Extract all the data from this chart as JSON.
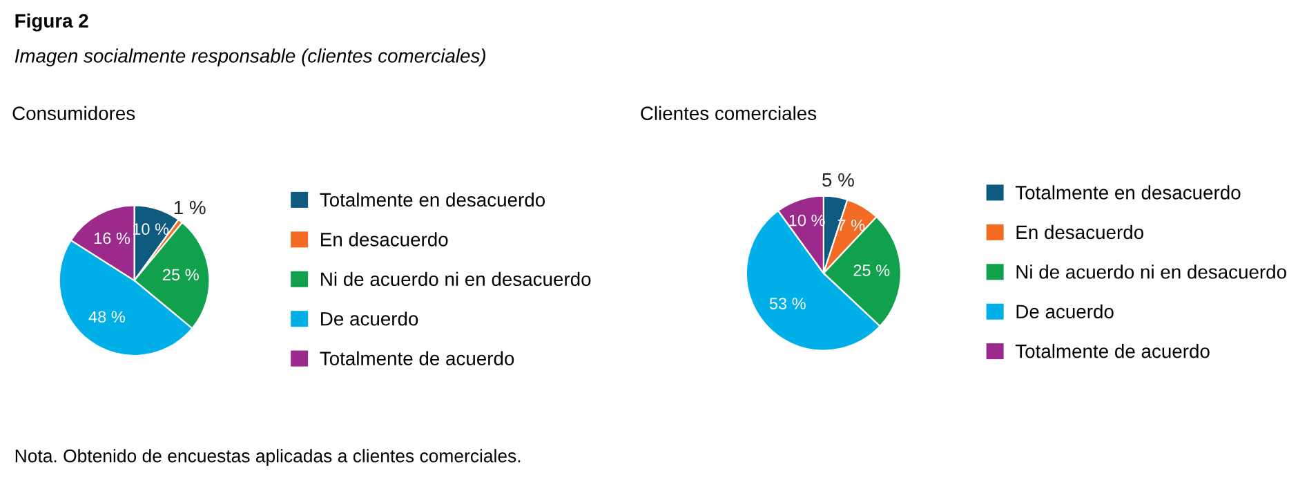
{
  "chart_data": [
    {
      "type": "pie",
      "title": "Consumidores",
      "categories": [
        "Totalmente en desacuerdo",
        "En desacuerdo",
        "Ni de acuerdo ni en desacuerdo",
        "De acuerdo",
        "Totalmente de acuerdo"
      ],
      "values": [
        10,
        1,
        25,
        48,
        16
      ],
      "value_labels": [
        "10 %",
        "1 %",
        "25 %",
        "48 %",
        "16 %"
      ],
      "colors": [
        "#0f5a7f",
        "#f26b22",
        "#11a04b",
        "#00aee8",
        "#9b2a8c"
      ],
      "legend": "right",
      "annotations": [
        "Figura 2",
        "Imagen socialmente responsable (clientes comerciales)",
        "Nota. Obtenido de encuestas aplicadas a clientes comerciales."
      ]
    },
    {
      "type": "pie",
      "title": "Clientes comerciales",
      "categories": [
        "Totalmente en desacuerdo",
        "En desacuerdo",
        "Ni de acuerdo ni en desacuerdo",
        "De acuerdo",
        "Totalmente de acuerdo"
      ],
      "values": [
        5,
        7,
        25,
        53,
        10
      ],
      "value_labels": [
        "5 %",
        "7 %",
        "25 %",
        "53 %",
        "10 %"
      ],
      "colors": [
        "#0f5a7f",
        "#f26b22",
        "#11a04b",
        "#00aee8",
        "#9b2a8c"
      ],
      "legend": "right"
    }
  ]
}
